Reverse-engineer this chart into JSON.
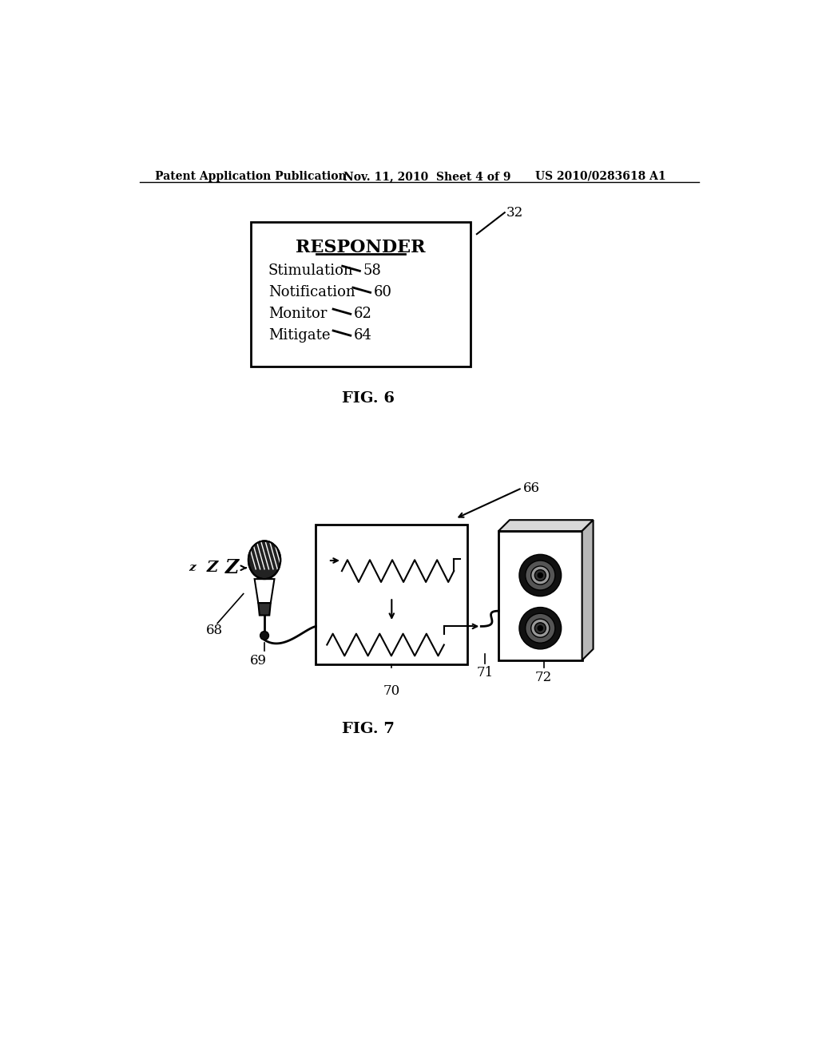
{
  "bg_color": "#ffffff",
  "header_left": "Patent Application Publication",
  "header_mid": "Nov. 11, 2010  Sheet 4 of 9",
  "header_right": "US 2010/0283618 A1",
  "fig6_label": "FIG. 6",
  "fig7_label": "FIG. 7",
  "responder_title": "RESPONDER",
  "box_items": [
    {
      "label": "Stimulation",
      "num": "58"
    },
    {
      "label": "Notification",
      "num": "60"
    },
    {
      "label": "Monitor",
      "num": "62"
    },
    {
      "label": "Mitigate",
      "num": "64"
    }
  ],
  "label_32": "32",
  "label_66": "66",
  "label_68": "68",
  "label_69": "69",
  "label_70": "70",
  "label_71": "71",
  "label_72": "72",
  "z_labels": [
    "z",
    "Z",
    "Z"
  ]
}
